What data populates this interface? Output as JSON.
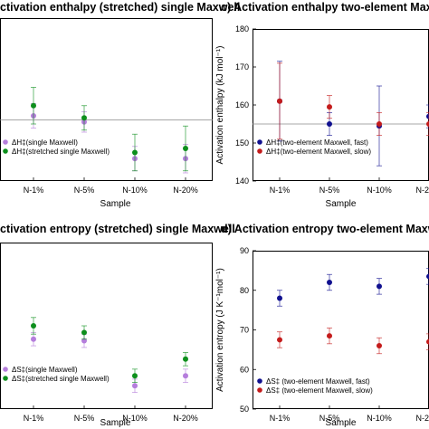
{
  "colors": {
    "purple": "#b57edc",
    "green": "#0d8f1c",
    "navy": "#10108f",
    "darkred": "#c41b1b",
    "frame": "#000000",
    "reference_line": "#8a8a8a"
  },
  "chart_data": [
    {
      "type": "scatter",
      "title": "ctivation enthalpy (stretched) single Maxwell",
      "xlabel": "Sample",
      "ylabel": "",
      "categories": [
        "N-1%",
        "N-5%",
        "N-10%",
        "N-20%"
      ],
      "ylim": [
        140,
        180
      ],
      "yticks": [],
      "reference_line": 155,
      "legend": "lower-left",
      "series": [
        {
          "name": "ΔH‡(single Maxwell)",
          "color": "#b57edc",
          "values": [
            156,
            154.5,
            145.5,
            145.5
          ],
          "errors": [
            3,
            2.5,
            3,
            3.5
          ]
        },
        {
          "name": "ΔH‡(stretched single Maxwell)",
          "color": "#0d8f1c",
          "values": [
            158.5,
            155.5,
            147,
            148
          ],
          "errors": [
            4.5,
            3,
            4.5,
            5.5
          ]
        }
      ]
    },
    {
      "type": "scatter",
      "title": "c) Activation enthalpy two-element Maxwell",
      "xlabel": "Sample",
      "ylabel": "Activation enthalpy (kJ mol⁻¹)",
      "categories": [
        "N-1%",
        "N-5%",
        "N-10%",
        "N-2"
      ],
      "ylim": [
        140,
        180
      ],
      "yticks": [
        140,
        150,
        160,
        170,
        180
      ],
      "reference_line": 155,
      "legend": "lower-left",
      "series": [
        {
          "name": "ΔH‡(two-element Maxwell, fast)",
          "color": "#10108f",
          "values": [
            161,
            155,
            154.5,
            157
          ],
          "errors": [
            10.5,
            3,
            10.5,
            3
          ]
        },
        {
          "name": "ΔH‡(two-element Maxwell, slow)",
          "color": "#c41b1b",
          "values": [
            161,
            159.5,
            155,
            155
          ],
          "errors": [
            10,
            3,
            3,
            3
          ]
        }
      ]
    },
    {
      "type": "scatter",
      "title": "ctivation entropy (stretched) single Maxwell",
      "xlabel": "Sample",
      "ylabel": "",
      "categories": [
        "N-1%",
        "N-5%",
        "N-10%",
        "N-20%"
      ],
      "ylim": [
        40,
        90
      ],
      "yticks": [],
      "legend": "lower-left",
      "series": [
        {
          "name": "ΔS‡(single Maxwell)",
          "color": "#b57edc",
          "values": [
            61,
            60.5,
            47,
            50
          ],
          "errors": [
            2,
            2,
            2,
            2
          ]
        },
        {
          "name": "ΔS‡(stretched single Maxwell)",
          "color": "#0d8f1c",
          "values": [
            65,
            63,
            50,
            55
          ],
          "errors": [
            2.5,
            2,
            2,
            2
          ]
        }
      ]
    },
    {
      "type": "scatter",
      "title": "d) Activation entropy two-element Maxwell",
      "xlabel": "Sample",
      "ylabel": "Activation entropy (J K⁻¹mol⁻¹)",
      "categories": [
        "N-1%",
        "N-5%",
        "N-10%",
        "N-2"
      ],
      "ylim": [
        50,
        90
      ],
      "yticks": [
        50,
        60,
        70,
        80,
        90
      ],
      "legend": "lower-left",
      "series": [
        {
          "name": "ΔS‡ (two-element Maxwell, fast)",
          "color": "#10108f",
          "values": [
            78,
            82,
            81,
            83.5
          ],
          "errors": [
            2,
            2,
            2,
            2
          ]
        },
        {
          "name": "ΔS‡ (two-element Maxwell, slow)",
          "color": "#c41b1b",
          "values": [
            67.5,
            68.5,
            66,
            67
          ],
          "errors": [
            2,
            2,
            2,
            2
          ]
        }
      ]
    }
  ]
}
